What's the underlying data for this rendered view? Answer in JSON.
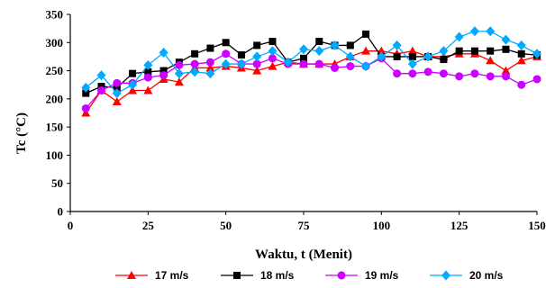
{
  "chart_data": {
    "type": "line",
    "xlabel": "Waktu, t (Menit)",
    "ylabel": "Tc (°C)",
    "xlim": [
      0,
      150
    ],
    "ylim": [
      0,
      350
    ],
    "xticks": [
      0,
      25,
      50,
      75,
      100,
      125,
      150
    ],
    "yticks": [
      0,
      50,
      100,
      150,
      200,
      250,
      300,
      350
    ],
    "grid": false,
    "legend_position": "bottom",
    "x": [
      5,
      10,
      15,
      20,
      25,
      30,
      35,
      40,
      45,
      50,
      55,
      60,
      65,
      70,
      75,
      80,
      85,
      90,
      95,
      100,
      105,
      110,
      115,
      120,
      125,
      130,
      135,
      140,
      145,
      150
    ],
    "series": [
      {
        "name": "17 m/s",
        "color": "#ff0000",
        "marker": "triangle",
        "values": [
          175,
          215,
          195,
          215,
          215,
          235,
          230,
          255,
          255,
          258,
          255,
          250,
          258,
          265,
          262,
          262,
          262,
          275,
          285,
          285,
          280,
          285,
          275,
          275,
          280,
          280,
          268,
          250,
          268,
          275
        ]
      },
      {
        "name": "18 m/s",
        "color": "#000000",
        "marker": "square",
        "values": [
          210,
          222,
          220,
          245,
          248,
          250,
          265,
          280,
          290,
          300,
          278,
          295,
          302,
          265,
          272,
          302,
          295,
          295,
          315,
          275,
          275,
          275,
          275,
          270,
          285,
          285,
          285,
          288,
          280,
          278
        ]
      },
      {
        "name": "19 m/s",
        "color": "#cc00ff",
        "marker": "circle",
        "values": [
          183,
          215,
          228,
          228,
          238,
          242,
          260,
          262,
          265,
          280,
          262,
          262,
          272,
          262,
          262,
          262,
          255,
          258,
          258,
          272,
          245,
          245,
          248,
          245,
          240,
          245,
          240,
          240,
          225,
          235
        ]
      },
      {
        "name": "20 m/s",
        "color": "#00aaff",
        "marker": "diamond",
        "values": [
          220,
          242,
          210,
          225,
          260,
          282,
          245,
          248,
          245,
          262,
          262,
          275,
          285,
          265,
          288,
          285,
          295,
          275,
          258,
          275,
          295,
          262,
          275,
          285,
          310,
          320,
          320,
          305,
          295,
          280
        ]
      }
    ]
  }
}
